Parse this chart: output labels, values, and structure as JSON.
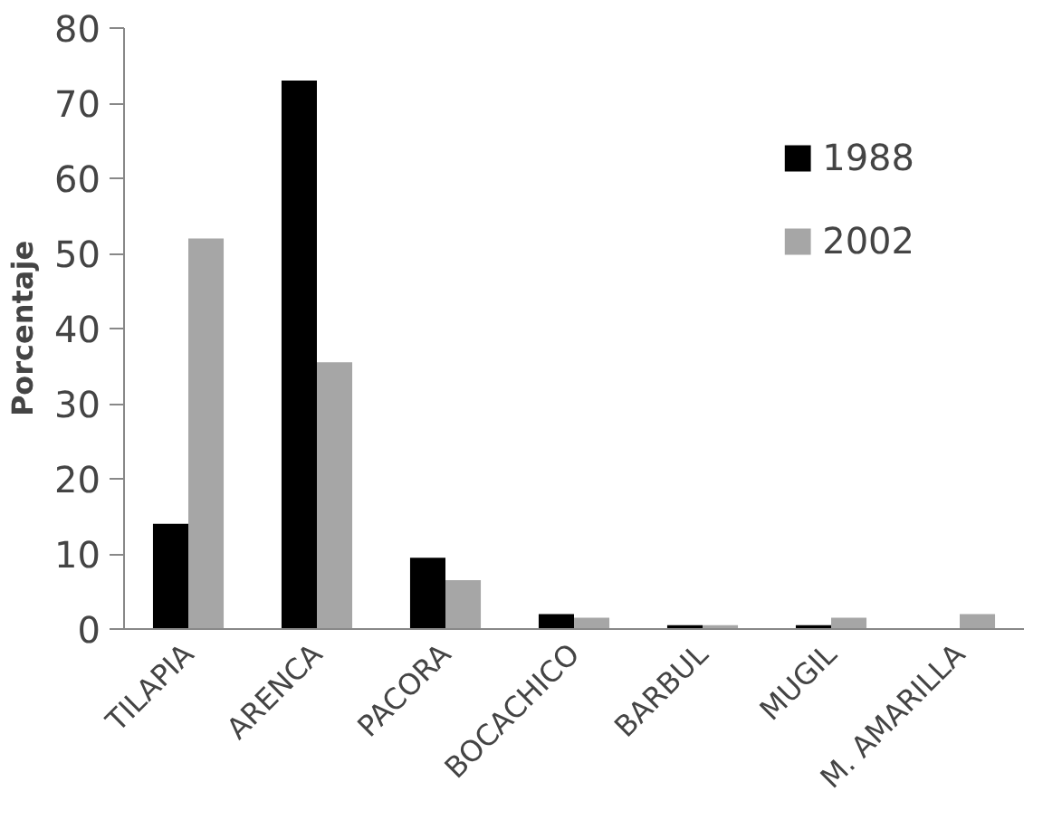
{
  "chart_data": {
    "type": "bar",
    "ylabel": "Porcentaje",
    "categories": [
      "TILAPIA",
      "ARENCA",
      "PACORA",
      "BOCACHICO",
      "BARBUL",
      "MUGIL",
      "M. AMARILLA"
    ],
    "series": [
      {
        "name": "1988",
        "color": "#000000",
        "values": [
          14,
          73,
          9.5,
          2,
          0.5,
          0.5,
          null
        ]
      },
      {
        "name": "2002",
        "color": "#a6a6a6",
        "values": [
          52,
          35.5,
          6.5,
          1.5,
          0.5,
          1.5,
          2
        ]
      }
    ],
    "ylim": [
      0,
      80
    ],
    "yticks": [
      0,
      10,
      20,
      30,
      40,
      50,
      60,
      70,
      80
    ],
    "grid": false,
    "legend": "top right"
  }
}
